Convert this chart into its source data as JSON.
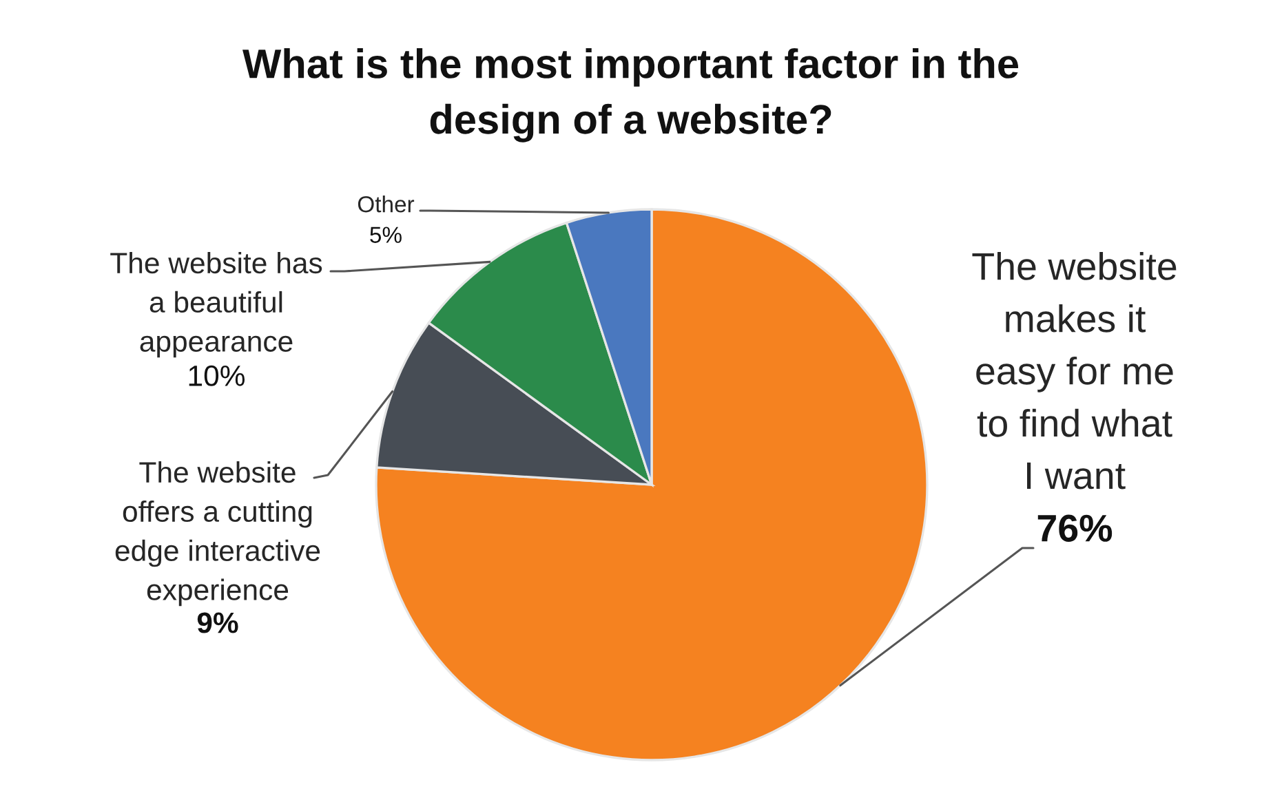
{
  "chart_data": {
    "type": "pie",
    "title": "What is the most important factor in the\ndesign of a website?",
    "categories": [
      "The website\nmakes it\neasy for me\nto find what\nI want",
      "The website\noffers a cutting\nedge interactive\nexperience",
      "The website has\na beautiful\nappearance",
      "Other"
    ],
    "values": [
      76,
      9,
      10,
      5
    ],
    "colors": [
      "#f58220",
      "#474d55",
      "#2b8b4b",
      "#4a78bf"
    ],
    "value_labels": [
      "76%",
      "9%",
      "10%",
      "5%"
    ]
  }
}
